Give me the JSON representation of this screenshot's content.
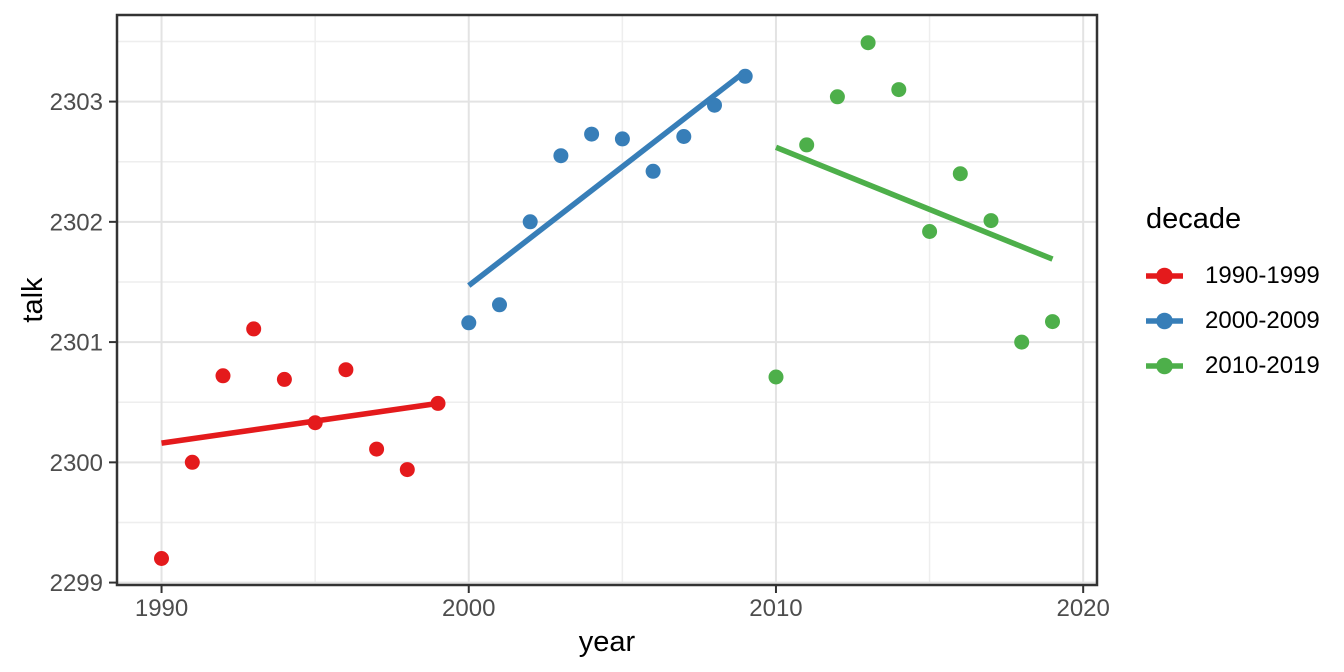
{
  "chart_data": {
    "type": "scatter",
    "xlabel": "year",
    "ylabel": "talk",
    "xlim": [
      1988.55,
      2020.45
    ],
    "ylim": [
      2298.98,
      2303.72
    ],
    "grid": true,
    "legend_position": "right",
    "x_ticks": [
      1990,
      2000,
      2010,
      2020
    ],
    "x_tick_labels": [
      "1990",
      "2000",
      "2010",
      "2020"
    ],
    "x_minor_ticks": [
      1995,
      2005,
      2015
    ],
    "y_ticks": [
      2299,
      2300,
      2301,
      2302,
      2303
    ],
    "y_tick_labels": [
      "2299",
      "2300",
      "2301",
      "2302",
      "2303"
    ],
    "y_minor_ticks": [
      2299.5,
      2300.5,
      2301.5,
      2302.5,
      2303.5
    ],
    "series": [
      {
        "name": "1990-1999",
        "color": "#E41A1C",
        "x": [
          1990,
          1991,
          1992,
          1993,
          1994,
          1995,
          1996,
          1997,
          1998,
          1999
        ],
        "y": [
          2299.2,
          2300.0,
          2300.72,
          2301.11,
          2300.69,
          2300.33,
          2300.77,
          2300.11,
          2299.94,
          2300.49
        ],
        "trend": {
          "x1": 1990,
          "y1": 2300.16,
          "x2": 1999,
          "y2": 2300.49
        }
      },
      {
        "name": "2000-2009",
        "color": "#377EB8",
        "x": [
          2000,
          2001,
          2002,
          2003,
          2004,
          2005,
          2006,
          2007,
          2008,
          2009
        ],
        "y": [
          2301.16,
          2301.31,
          2302.0,
          2302.55,
          2302.73,
          2302.69,
          2302.42,
          2302.71,
          2302.97,
          2303.21
        ],
        "trend": {
          "x1": 2000,
          "y1": 2301.47,
          "x2": 2009,
          "y2": 2303.25
        }
      },
      {
        "name": "2010-2019",
        "color": "#4DAF4A",
        "x": [
          2010,
          2011,
          2012,
          2013,
          2014,
          2015,
          2016,
          2017,
          2018,
          2019
        ],
        "y": [
          2300.71,
          2302.64,
          2303.04,
          2303.49,
          2303.1,
          2301.92,
          2302.4,
          2302.01,
          2301.0,
          2301.17
        ],
        "trend": {
          "x1": 2010,
          "y1": 2302.62,
          "x2": 2019,
          "y2": 2301.69
        }
      }
    ]
  },
  "legend": {
    "title": "decade",
    "items": [
      {
        "label": "1990-1999",
        "color": "#E41A1C"
      },
      {
        "label": "2000-2009",
        "color": "#377EB8"
      },
      {
        "label": "2010-2019",
        "color": "#4DAF4A"
      }
    ]
  },
  "style_colors": {
    "background": "#ffffff",
    "panel_border": "#333333",
    "grid_major": "#e3e3e3",
    "grid_minor": "#eeeeee",
    "tick_mark": "#333333",
    "tick_label": "#4d4d4d",
    "axis_title": "#000000"
  }
}
